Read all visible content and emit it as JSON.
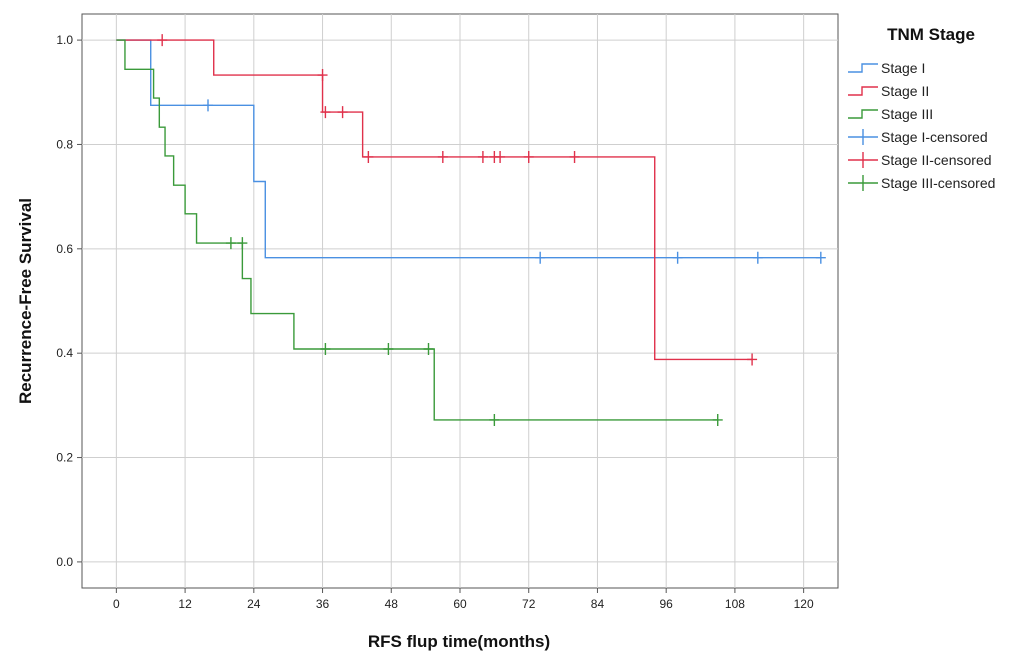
{
  "chart_data": {
    "type": "line",
    "subtype": "kaplan-meier",
    "xlabel": "RFS flup time(months)",
    "ylabel": "Recurrence-Free Survival",
    "xlim": [
      -6,
      126
    ],
    "ylim": [
      -0.05,
      1.05
    ],
    "xticks": [
      0,
      12,
      24,
      36,
      48,
      60,
      72,
      84,
      96,
      108,
      120
    ],
    "yticks": [
      0.0,
      0.2,
      0.4,
      0.6,
      0.8,
      1.0
    ],
    "ytick_labels": [
      "0.0",
      "0.2",
      "0.4",
      "0.6",
      "0.8",
      "1.0"
    ],
    "grid": true,
    "legend": {
      "title": "TNM Stage",
      "position": "top-right",
      "entries": [
        "Stage I",
        "Stage II",
        "Stage III",
        "Stage I-censored",
        "Stage II-censored",
        "Stage III-censored"
      ]
    },
    "series": [
      {
        "name": "Stage I",
        "color": "#4a90e2",
        "steps": [
          [
            0,
            1.0
          ],
          [
            6,
            0.875
          ],
          [
            24,
            0.729
          ],
          [
            26,
            0.583
          ],
          [
            123,
            0.583
          ]
        ],
        "censored": [
          [
            16,
            0.875
          ],
          [
            74,
            0.583
          ],
          [
            98,
            0.583
          ],
          [
            112,
            0.583
          ],
          [
            123,
            0.583
          ]
        ]
      },
      {
        "name": "Stage II",
        "color": "#e0314b",
        "steps": [
          [
            0,
            1.0
          ],
          [
            17,
            0.933
          ],
          [
            36,
            0.862
          ],
          [
            43,
            0.776
          ],
          [
            94,
            0.388
          ],
          [
            111,
            0.388
          ]
        ],
        "censored": [
          [
            8,
            1.0
          ],
          [
            36,
            0.933
          ],
          [
            36.5,
            0.862
          ],
          [
            39.5,
            0.862
          ],
          [
            44,
            0.776
          ],
          [
            57,
            0.776
          ],
          [
            64,
            0.776
          ],
          [
            66,
            0.776
          ],
          [
            67,
            0.776
          ],
          [
            72,
            0.776
          ],
          [
            80,
            0.776
          ],
          [
            111,
            0.388
          ]
        ]
      },
      {
        "name": "Stage III",
        "color": "#3a9a3a",
        "steps": [
          [
            0,
            1.0
          ],
          [
            1.5,
            0.944
          ],
          [
            6.5,
            0.889
          ],
          [
            7.5,
            0.833
          ],
          [
            8.5,
            0.778
          ],
          [
            10,
            0.722
          ],
          [
            12,
            0.667
          ],
          [
            14,
            0.611
          ],
          [
            22,
            0.543
          ],
          [
            23.5,
            0.476
          ],
          [
            31,
            0.408
          ],
          [
            55.5,
            0.272
          ],
          [
            105,
            0.272
          ]
        ],
        "censored": [
          [
            20,
            0.611
          ],
          [
            22,
            0.611
          ],
          [
            36.5,
            0.408
          ],
          [
            47.5,
            0.408
          ],
          [
            54.5,
            0.408
          ],
          [
            66,
            0.272
          ],
          [
            105,
            0.272
          ]
        ]
      }
    ]
  }
}
